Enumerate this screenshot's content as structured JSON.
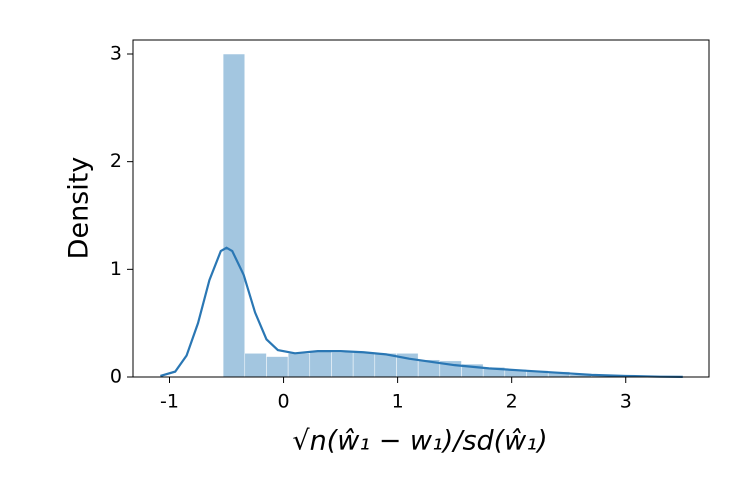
{
  "chart_data": {
    "type": "histogram",
    "xlabel": "√n(ŵ₁ − w₁)/sd(ŵ₁)",
    "ylabel": "Density",
    "bins": [
      -0.53,
      -0.34,
      -0.15,
      0.04,
      0.23,
      0.42,
      0.61,
      0.8,
      0.99,
      1.18,
      1.37,
      1.56,
      1.75,
      1.94,
      2.13,
      2.32,
      2.51,
      2.7,
      2.89,
      3.08,
      3.27,
      3.46
    ],
    "values": [
      3.0,
      0.22,
      0.19,
      0.22,
      0.24,
      0.23,
      0.23,
      0.22,
      0.22,
      0.16,
      0.15,
      0.12,
      0.09,
      0.07,
      0.06,
      0.05,
      0.02,
      0.01,
      0.01,
      0.01,
      0.01
    ],
    "color": "#a3c6e0",
    "kde": {
      "color": "#2a77b4",
      "x": [
        -1.08,
        -0.95,
        -0.85,
        -0.75,
        -0.65,
        -0.55,
        -0.5,
        -0.45,
        -0.35,
        -0.25,
        -0.15,
        -0.05,
        0.1,
        0.3,
        0.5,
        0.7,
        0.9,
        1.1,
        1.3,
        1.5,
        1.8,
        2.1,
        2.4,
        2.7,
        3.0,
        3.3,
        3.5
      ],
      "values": [
        0.01,
        0.05,
        0.2,
        0.5,
        0.9,
        1.17,
        1.2,
        1.17,
        0.95,
        0.6,
        0.35,
        0.25,
        0.22,
        0.24,
        0.24,
        0.23,
        0.21,
        0.17,
        0.14,
        0.11,
        0.08,
        0.06,
        0.04,
        0.02,
        0.01,
        0.003,
        0.001
      ]
    },
    "xlim": [
      -1.32,
      3.73
    ],
    "ylim": [
      0,
      3.13
    ],
    "xticks": [
      -1,
      0,
      1,
      2,
      3
    ],
    "yticks": [
      0,
      1,
      2,
      3
    ]
  }
}
